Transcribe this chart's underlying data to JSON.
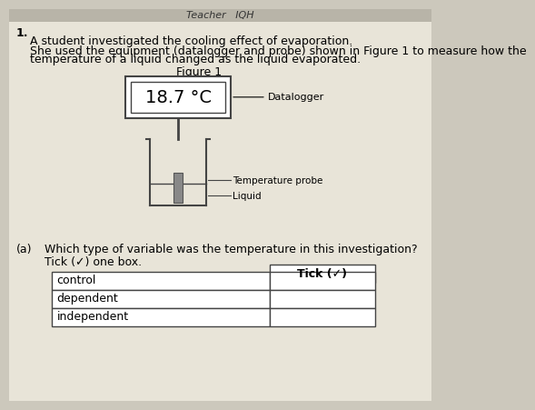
{
  "background_color": "#ccc8bc",
  "panel_color": "#e8e4d8",
  "page_header_text": "Teacher   IQH",
  "question_number": "1.",
  "intro_text_1": "A student investigated the cooling effect of evaporation.",
  "intro_text_2": "She used the equipment (datalogger and probe) shown in Figure 1 to measure how the",
  "intro_text_3": "temperature of a liquid changed as the liquid evaporated.",
  "figure_title": "Figure 1",
  "datalogger_display": "18.7 °C",
  "datalogger_label": "Datalogger",
  "probe_label": "Temperature probe",
  "liquid_label": "Liquid",
  "part_a_label": "(a)",
  "question_text": "Which type of variable was the temperature in this investigation?",
  "tick_instruction": "Tick (✓) one box.",
  "table_header": "Tick (✓)",
  "table_rows": [
    "control",
    "dependent",
    "independent"
  ],
  "tick_in_row": "",
  "font_size_body": 9,
  "font_size_small": 8
}
